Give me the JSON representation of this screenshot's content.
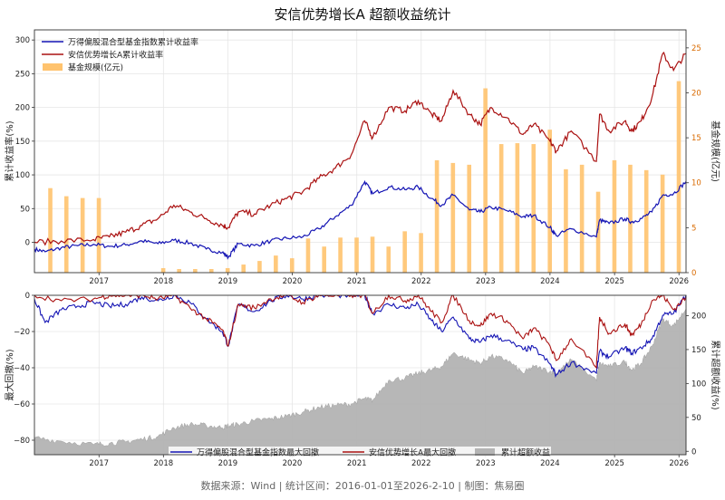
{
  "title": "安信优势增长A 超额收益统计",
  "footer": "数据来源：Wind | 统计区间：2016-01-01至2026-2-10 | 制图：焦易圈",
  "colors": {
    "index": "#1414b4",
    "fund": "#aa1111",
    "scale": "#ffc36e",
    "excess": "#b4b4b4"
  },
  "chart_data": [
    {
      "type": "line",
      "panel": "top",
      "ylabel_left": "累计收益率(%)",
      "ylabel_right": "基金规模(亿元)",
      "x_ticks": [
        "2017",
        "2018",
        "2019",
        "2020",
        "2021",
        "2022",
        "2023",
        "2024",
        "2025",
        "2026"
      ],
      "xlim": [
        "2016-01-01",
        "2026-02-10"
      ],
      "ylim_left": [
        -45,
        315
      ],
      "y_ticks_left": [
        "300",
        "250",
        "200",
        "150",
        "100",
        "50",
        "0"
      ],
      "ylim_right": [
        0,
        27
      ],
      "y_ticks_right": [
        "25",
        "20",
        "15",
        "10",
        "5",
        "0"
      ],
      "legend": {
        "position": "top-left",
        "entries": [
          "万得偏股混合型基金指数累计收益率",
          "安信优势增长A累计收益率",
          "基金规模(亿元)"
        ]
      },
      "series": [
        {
          "name": "万得偏股混合型基金指数累计收益率",
          "x": [
            "2016-01-01",
            "2016-03-01",
            "2016-06-01",
            "2016-09-01",
            "2016-12-01",
            "2017-03-01",
            "2017-06-01",
            "2017-09-01",
            "2017-12-01",
            "2018-03-01",
            "2018-06-01",
            "2018-09-01",
            "2018-12-01",
            "2019-01-04",
            "2019-03-01",
            "2019-06-01",
            "2019-09-01",
            "2019-12-01",
            "2020-03-01",
            "2020-06-01",
            "2020-09-01",
            "2020-12-01",
            "2021-02-15",
            "2021-04-01",
            "2021-07-01",
            "2021-10-01",
            "2021-12-15",
            "2022-03-01",
            "2022-04-27",
            "2022-07-01",
            "2022-10-01",
            "2022-12-01",
            "2023-02-01",
            "2023-05-01",
            "2023-08-01",
            "2023-10-01",
            "2024-01-01",
            "2024-02-05",
            "2024-05-01",
            "2024-09-20",
            "2024-10-08",
            "2024-12-01",
            "2025-03-01",
            "2025-04-08",
            "2025-06-01",
            "2025-08-01",
            "2025-10-01",
            "2025-12-01",
            "2026-02-10"
          ],
          "y": [
            -10,
            -14,
            -8,
            -5,
            -3,
            -6,
            -4,
            2,
            -2,
            3,
            -1,
            -10,
            -15,
            -22,
            -2,
            -5,
            2,
            6,
            8,
            20,
            38,
            55,
            90,
            72,
            82,
            78,
            82,
            65,
            55,
            70,
            48,
            45,
            52,
            47,
            38,
            40,
            22,
            10,
            20,
            8,
            33,
            28,
            35,
            30,
            35,
            45,
            70,
            72,
            90
          ]
        },
        {
          "name": "安信优势增长A累计收益率",
          "x": [
            "2016-01-01",
            "2016-06-01",
            "2016-12-01",
            "2017-03-01",
            "2017-06-01",
            "2017-09-01",
            "2017-12-01",
            "2018-03-01",
            "2018-06-01",
            "2018-09-01",
            "2018-12-01",
            "2019-01-04",
            "2019-03-01",
            "2019-06-01",
            "2019-09-01",
            "2019-12-01",
            "2020-03-01",
            "2020-06-01",
            "2020-09-01",
            "2020-12-01",
            "2021-02-15",
            "2021-04-01",
            "2021-07-01",
            "2021-10-01",
            "2021-12-15",
            "2022-03-01",
            "2022-04-27",
            "2022-07-01",
            "2022-10-01",
            "2022-12-01",
            "2023-02-01",
            "2023-05-01",
            "2023-08-01",
            "2023-10-01",
            "2024-01-01",
            "2024-02-05",
            "2024-05-01",
            "2024-09-20",
            "2024-10-08",
            "2024-12-01",
            "2025-03-01",
            "2025-04-08",
            "2025-06-01",
            "2025-08-01",
            "2025-10-01",
            "2025-12-01",
            "2026-02-10"
          ],
          "y": [
            0,
            2,
            4,
            8,
            15,
            25,
            35,
            55,
            45,
            35,
            25,
            22,
            45,
            42,
            55,
            65,
            75,
            95,
            110,
            130,
            180,
            155,
            200,
            195,
            210,
            190,
            180,
            225,
            190,
            175,
            200,
            185,
            160,
            175,
            150,
            135,
            165,
            120,
            190,
            165,
            180,
            165,
            180,
            215,
            280,
            255,
            280
          ]
        },
        {
          "name": "基金规模(亿元)",
          "type": "bar",
          "x": [
            "2016-03-31",
            "2016-06-30",
            "2016-09-30",
            "2016-12-31",
            "2017-12-31",
            "2018-03-31",
            "2018-06-30",
            "2018-09-30",
            "2018-12-31",
            "2019-03-31",
            "2019-06-30",
            "2019-09-30",
            "2019-12-31",
            "2020-03-31",
            "2020-06-30",
            "2020-09-30",
            "2020-12-31",
            "2021-03-31",
            "2021-06-30",
            "2021-09-30",
            "2021-12-31",
            "2022-03-31",
            "2022-06-30",
            "2022-09-30",
            "2022-12-31",
            "2023-03-31",
            "2023-06-30",
            "2023-09-30",
            "2023-12-31",
            "2024-03-31",
            "2024-06-30",
            "2024-09-30",
            "2024-12-31",
            "2025-03-31",
            "2025-06-30",
            "2025-09-30",
            "2025-12-31"
          ],
          "y": [
            9.4,
            8.5,
            8.3,
            8.3,
            0.5,
            0.4,
            0.4,
            0.4,
            0.5,
            0.9,
            1.3,
            1.9,
            1.6,
            3.8,
            2.9,
            3.9,
            3.9,
            4.0,
            2.9,
            4.6,
            4.4,
            12.5,
            12.2,
            12.0,
            20.5,
            14.3,
            14.4,
            14.3,
            15.9,
            11.5,
            12.0,
            9.0,
            12.5,
            12.0,
            11.4,
            10.9,
            21.3
          ]
        }
      ]
    },
    {
      "type": "area",
      "panel": "bottom",
      "ylabel_left": "最大回撤(%)",
      "ylabel_right": "累计超额收益(%)",
      "x_ticks": [
        "2017",
        "2018",
        "2019",
        "2020",
        "2021",
        "2022",
        "2023",
        "2024",
        "2025",
        "2026"
      ],
      "xlim": [
        "2016-01-01",
        "2026-02-10"
      ],
      "ylim_left": [
        -88,
        0
      ],
      "y_ticks_left": [
        "0",
        "−20",
        "−40",
        "−60",
        "−80"
      ],
      "ylim_right": [
        -5,
        230
      ],
      "y_ticks_right": [
        "200",
        "150",
        "100",
        "50",
        "0"
      ],
      "legend": {
        "position": "bottom-center",
        "entries": [
          "万得偏股混合型基金指数最大回撤",
          "安信优势增长A最大回撤",
          "累计超额收益"
        ]
      },
      "series": [
        {
          "name": "万得偏股混合型基金指数最大回撤",
          "x": [
            "2016-01-01",
            "2016-03-01",
            "2016-06-01",
            "2016-09-01",
            "2016-12-01",
            "2017-03-01",
            "2017-06-01",
            "2017-09-01",
            "2017-12-01",
            "2018-03-01",
            "2018-06-01",
            "2018-09-01",
            "2018-12-01",
            "2019-01-04",
            "2019-03-01",
            "2019-06-01",
            "2019-09-01",
            "2019-12-01",
            "2020-03-01",
            "2020-06-01",
            "2020-09-01",
            "2020-12-01",
            "2021-02-15",
            "2021-04-01",
            "2021-07-01",
            "2021-10-01",
            "2021-12-15",
            "2022-03-01",
            "2022-04-27",
            "2022-07-01",
            "2022-10-01",
            "2022-12-01",
            "2023-02-01",
            "2023-05-01",
            "2023-08-01",
            "2023-10-01",
            "2024-01-01",
            "2024-02-05",
            "2024-05-01",
            "2024-09-20",
            "2024-10-08",
            "2024-12-01",
            "2025-03-01",
            "2025-04-08",
            "2025-06-01",
            "2025-08-01",
            "2025-10-01",
            "2025-12-01",
            "2026-02-10"
          ],
          "y": [
            -2,
            -15,
            -8,
            -6,
            -4,
            -6,
            -5,
            -1,
            -3,
            0,
            -4,
            -13,
            -20,
            -28,
            -5,
            -9,
            -3,
            0,
            -2,
            0,
            0,
            0,
            0,
            -10,
            -5,
            -7,
            -5,
            -14,
            -20,
            -12,
            -24,
            -26,
            -22,
            -25,
            -30,
            -29,
            -38,
            -44,
            -37,
            -43,
            -31,
            -34,
            -29,
            -32,
            -29,
            -24,
            -11,
            -10,
            0
          ]
        },
        {
          "name": "安信优势增长A最大回撤",
          "x": [
            "2016-01-01",
            "2016-06-01",
            "2016-12-01",
            "2017-03-01",
            "2017-06-01",
            "2017-09-01",
            "2017-12-01",
            "2018-03-01",
            "2018-06-01",
            "2018-09-01",
            "2018-12-01",
            "2019-01-04",
            "2019-03-01",
            "2019-06-01",
            "2019-09-01",
            "2019-12-01",
            "2020-03-01",
            "2020-06-01",
            "2020-09-01",
            "2020-12-01",
            "2021-02-15",
            "2021-04-01",
            "2021-07-01",
            "2021-10-01",
            "2021-12-15",
            "2022-03-01",
            "2022-04-27",
            "2022-07-01",
            "2022-10-01",
            "2022-12-01",
            "2023-02-01",
            "2023-05-01",
            "2023-08-01",
            "2023-10-01",
            "2024-01-01",
            "2024-02-05",
            "2024-05-01",
            "2024-09-20",
            "2024-10-08",
            "2024-12-01",
            "2025-03-01",
            "2025-04-08",
            "2025-06-01",
            "2025-08-01",
            "2025-10-01",
            "2025-12-01",
            "2026-02-10"
          ],
          "y": [
            0,
            -3,
            -2,
            0,
            0,
            0,
            -2,
            0,
            -7,
            -13,
            -19,
            -28,
            -5,
            -7,
            -2,
            0,
            -4,
            0,
            0,
            0,
            0,
            -10,
            0,
            -3,
            0,
            -9,
            -15,
            0,
            -14,
            -17,
            -10,
            -14,
            -24,
            -18,
            -28,
            -36,
            -24,
            -40,
            -12,
            -21,
            -16,
            -22,
            -16,
            -3,
            0,
            -8,
            -1
          ]
        },
        {
          "name": "累计超额收益",
          "type": "area",
          "x": [
            "2016-01-01",
            "2016-06-01",
            "2016-12-01",
            "2017-03-01",
            "2017-06-01",
            "2017-09-01",
            "2017-12-01",
            "2018-03-01",
            "2018-06-01",
            "2018-09-01",
            "2018-12-01",
            "2019-01-04",
            "2019-03-01",
            "2019-06-01",
            "2019-09-01",
            "2019-12-01",
            "2020-03-01",
            "2020-06-01",
            "2020-09-01",
            "2020-12-01",
            "2021-02-15",
            "2021-04-01",
            "2021-07-01",
            "2021-10-01",
            "2021-12-15",
            "2022-03-01",
            "2022-04-27",
            "2022-07-01",
            "2022-10-01",
            "2022-12-01",
            "2023-02-01",
            "2023-05-01",
            "2023-08-01",
            "2023-10-01",
            "2024-01-01",
            "2024-02-05",
            "2024-05-01",
            "2024-09-20",
            "2024-10-08",
            "2024-12-01",
            "2025-03-01",
            "2025-04-08",
            "2025-06-01",
            "2025-08-01",
            "2025-10-01",
            "2025-12-01",
            "2026-02-10"
          ],
          "y": [
            20,
            15,
            10,
            12,
            14,
            18,
            22,
            35,
            40,
            38,
            35,
            38,
            40,
            45,
            48,
            52,
            58,
            65,
            68,
            70,
            78,
            75,
            105,
            108,
            115,
            120,
            125,
            145,
            135,
            130,
            140,
            135,
            115,
            125,
            118,
            115,
            135,
            105,
            130,
            125,
            132,
            120,
            130,
            155,
            195,
            185,
            210
          ]
        }
      ]
    }
  ]
}
